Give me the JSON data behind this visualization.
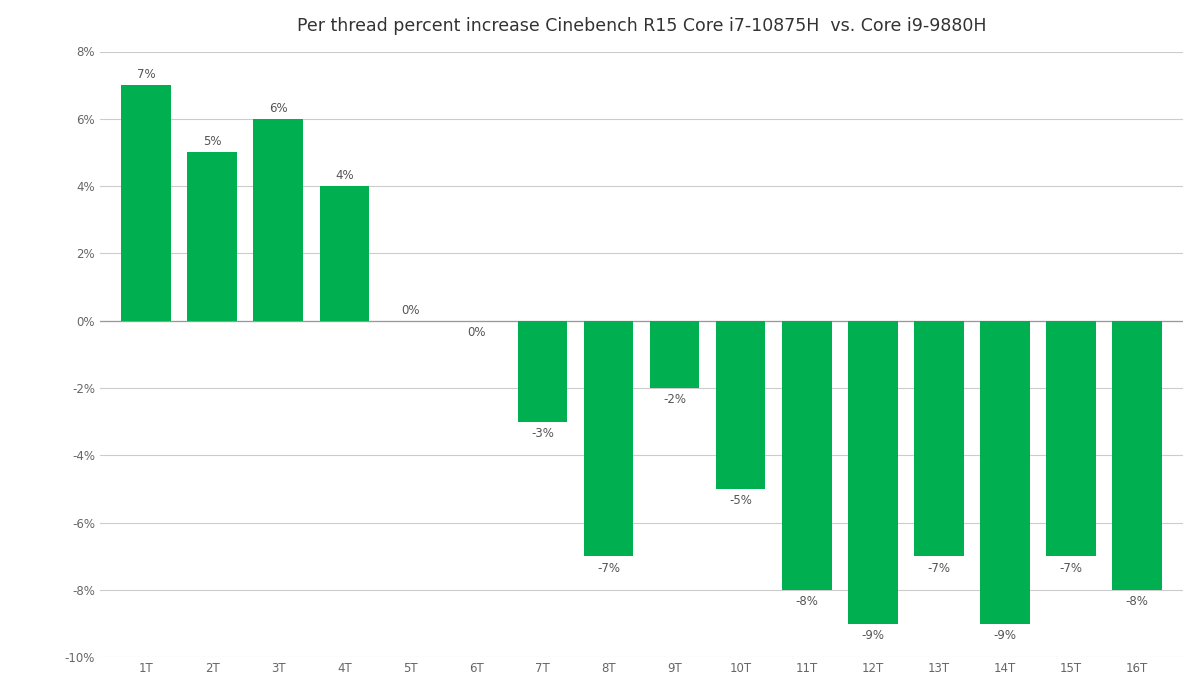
{
  "title": "Per thread percent increase Cinebench R15 Core i7-10875H  vs. Core i9-9880H",
  "categories": [
    "1T",
    "2T",
    "3T",
    "4T",
    "5T",
    "6T",
    "7T",
    "8T",
    "9T",
    "10T",
    "11T",
    "12T",
    "13T",
    "14T",
    "15T",
    "16T"
  ],
  "values": [
    7,
    5,
    6,
    4,
    0,
    0,
    -3,
    -7,
    -2,
    -5,
    -8,
    -9,
    -7,
    -9,
    -7,
    -8
  ],
  "label_values": [
    "7%",
    "5%",
    "6%",
    "4%",
    "0%",
    "0%",
    "-3%",
    "-7%",
    "-2%",
    "-5%",
    "-8%",
    "-9%",
    "-7%",
    "-9%",
    "-7%",
    "-8%"
  ],
  "bar_color": "#00b050",
  "background_color": "#ffffff",
  "ylim": [
    -10,
    8
  ],
  "yticks": [
    -10,
    -8,
    -6,
    -4,
    -2,
    0,
    2,
    4,
    6,
    8
  ],
  "title_fontsize": 12.5,
  "label_fontsize": 8.5,
  "tick_fontsize": 8.5,
  "bar_width": 0.75
}
